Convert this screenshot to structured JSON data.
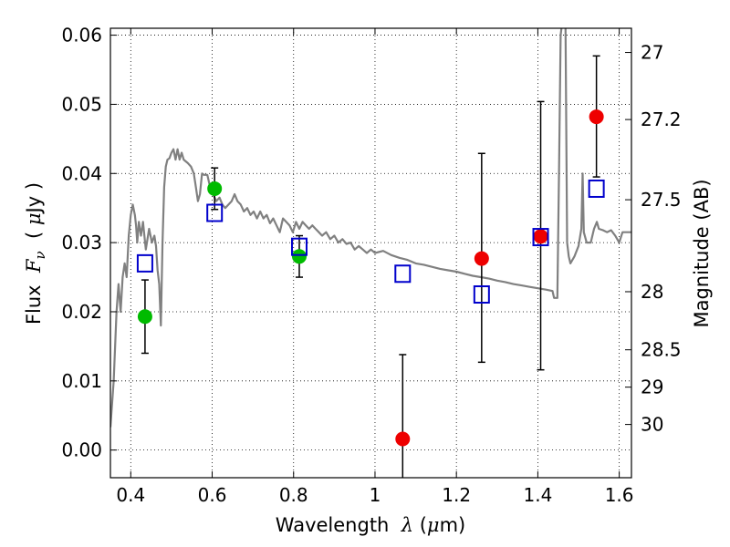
{
  "chart_data": {
    "type": "scatter",
    "xlabel_parts": [
      "Wavelength  ",
      "λ",
      " (",
      "μ",
      "m)"
    ],
    "ylabel_parts": [
      "Flux  ",
      "F",
      "ν",
      "  ( ",
      "μ",
      "Jy )"
    ],
    "y2label": "Magnitude (AB)",
    "xlim": [
      0.35,
      1.63
    ],
    "ylim": [
      -0.004,
      0.061
    ],
    "x_ticks": [
      0.4,
      0.6,
      0.8,
      1.0,
      1.2,
      1.4,
      1.6
    ],
    "x_tick_labels": [
      "0.4",
      "0.6",
      "0.8",
      "1",
      "1.2",
      "1.4",
      "1.6"
    ],
    "y_ticks": [
      0.0,
      0.01,
      0.02,
      0.03,
      0.04,
      0.05,
      0.06
    ],
    "y_tick_labels": [
      "0.00",
      "0.01",
      "0.02",
      "0.03",
      "0.04",
      "0.05",
      "0.06"
    ],
    "y2_ticks": [
      {
        "label": "27",
        "flux": 0.0575
      },
      {
        "label": "27.2",
        "flux": 0.0478
      },
      {
        "label": "27.5",
        "flux": 0.0362
      },
      {
        "label": "28",
        "flux": 0.0229
      },
      {
        "label": "28.5",
        "flux": 0.0145
      },
      {
        "label": "29",
        "flux": 0.0091
      },
      {
        "label": "30",
        "flux": 0.0037
      }
    ],
    "grid": true,
    "grid_style": "dotted",
    "colors": {
      "model": "#808080",
      "bands_green": "#00bb00",
      "bands_red": "#ee0000",
      "model_box": "#0000cc",
      "errorbar": "#000000"
    },
    "series": [
      {
        "marker": "filled-circle",
        "color_key": "bands_green",
        "points": [
          {
            "x": 0.435,
            "y": 0.0193,
            "err_low": 0.0053,
            "err_high": 0.0053
          },
          {
            "x": 0.606,
            "y": 0.0378,
            "err_low": 0.003,
            "err_high": 0.003
          },
          {
            "x": 0.814,
            "y": 0.028,
            "err_low": 0.003,
            "err_high": 0.003
          }
        ]
      },
      {
        "marker": "filled-circle",
        "color_key": "bands_red",
        "points": [
          {
            "x": 1.068,
            "y": 0.0016,
            "err_low": 0.006,
            "err_high": 0.0122
          },
          {
            "x": 1.262,
            "y": 0.0277,
            "err_low": 0.015,
            "err_high": 0.0152
          },
          {
            "x": 1.407,
            "y": 0.0309,
            "err_low": 0.0193,
            "err_high": 0.0195
          },
          {
            "x": 1.544,
            "y": 0.0482,
            "err_low": 0.0087,
            "err_high": 0.0088
          }
        ]
      },
      {
        "marker": "open-square",
        "color_key": "model_box",
        "points": [
          {
            "x": 0.435,
            "y": 0.027
          },
          {
            "x": 0.606,
            "y": 0.0343
          },
          {
            "x": 0.814,
            "y": 0.0294
          },
          {
            "x": 1.068,
            "y": 0.0255
          },
          {
            "x": 1.262,
            "y": 0.0225
          },
          {
            "x": 1.407,
            "y": 0.0308
          },
          {
            "x": 1.544,
            "y": 0.0378
          }
        ]
      },
      {
        "marker": "line",
        "color_key": "model",
        "points": [
          [
            0.35,
            0.0033
          ],
          [
            0.358,
            0.01
          ],
          [
            0.365,
            0.02
          ],
          [
            0.37,
            0.024
          ],
          [
            0.375,
            0.02
          ],
          [
            0.38,
            0.025
          ],
          [
            0.385,
            0.027
          ],
          [
            0.39,
            0.025
          ],
          [
            0.395,
            0.031
          ],
          [
            0.4,
            0.034
          ],
          [
            0.405,
            0.0355
          ],
          [
            0.41,
            0.034
          ],
          [
            0.413,
            0.0325
          ],
          [
            0.416,
            0.03
          ],
          [
            0.42,
            0.033
          ],
          [
            0.425,
            0.031
          ],
          [
            0.43,
            0.033
          ],
          [
            0.437,
            0.029
          ],
          [
            0.445,
            0.032
          ],
          [
            0.452,
            0.03
          ],
          [
            0.458,
            0.031
          ],
          [
            0.462,
            0.0295
          ],
          [
            0.466,
            0.026
          ],
          [
            0.47,
            0.024
          ],
          [
            0.474,
            0.018
          ],
          [
            0.478,
            0.03
          ],
          [
            0.482,
            0.038
          ],
          [
            0.486,
            0.041
          ],
          [
            0.49,
            0.042
          ],
          [
            0.495,
            0.0422
          ],
          [
            0.5,
            0.043
          ],
          [
            0.505,
            0.0435
          ],
          [
            0.51,
            0.042
          ],
          [
            0.515,
            0.0435
          ],
          [
            0.52,
            0.042
          ],
          [
            0.525,
            0.043
          ],
          [
            0.53,
            0.042
          ],
          [
            0.54,
            0.0415
          ],
          [
            0.548,
            0.041
          ],
          [
            0.555,
            0.04
          ],
          [
            0.56,
            0.038
          ],
          [
            0.565,
            0.036
          ],
          [
            0.57,
            0.037
          ],
          [
            0.575,
            0.04
          ],
          [
            0.58,
            0.0398
          ],
          [
            0.588,
            0.0398
          ],
          [
            0.595,
            0.038
          ],
          [
            0.602,
            0.037
          ],
          [
            0.61,
            0.036
          ],
          [
            0.618,
            0.0365
          ],
          [
            0.625,
            0.0355
          ],
          [
            0.632,
            0.035
          ],
          [
            0.64,
            0.0355
          ],
          [
            0.648,
            0.036
          ],
          [
            0.655,
            0.037
          ],
          [
            0.662,
            0.036
          ],
          [
            0.67,
            0.0355
          ],
          [
            0.678,
            0.0345
          ],
          [
            0.686,
            0.035
          ],
          [
            0.694,
            0.034
          ],
          [
            0.702,
            0.0345
          ],
          [
            0.71,
            0.0335
          ],
          [
            0.718,
            0.0345
          ],
          [
            0.726,
            0.0335
          ],
          [
            0.734,
            0.034
          ],
          [
            0.742,
            0.0328
          ],
          [
            0.75,
            0.0335
          ],
          [
            0.758,
            0.0325
          ],
          [
            0.766,
            0.0315
          ],
          [
            0.774,
            0.0335
          ],
          [
            0.782,
            0.033
          ],
          [
            0.79,
            0.0325
          ],
          [
            0.798,
            0.0315
          ],
          [
            0.806,
            0.033
          ],
          [
            0.814,
            0.032
          ],
          [
            0.822,
            0.033
          ],
          [
            0.83,
            0.0325
          ],
          [
            0.838,
            0.032
          ],
          [
            0.846,
            0.0325
          ],
          [
            0.854,
            0.032
          ],
          [
            0.862,
            0.0315
          ],
          [
            0.87,
            0.031
          ],
          [
            0.88,
            0.0315
          ],
          [
            0.89,
            0.0305
          ],
          [
            0.9,
            0.031
          ],
          [
            0.91,
            0.03
          ],
          [
            0.92,
            0.0305
          ],
          [
            0.93,
            0.0298
          ],
          [
            0.94,
            0.03
          ],
          [
            0.95,
            0.029
          ],
          [
            0.96,
            0.0295
          ],
          [
            0.97,
            0.029
          ],
          [
            0.98,
            0.0285
          ],
          [
            0.99,
            0.029
          ],
          [
            1.0,
            0.0285
          ],
          [
            1.02,
            0.0288
          ],
          [
            1.04,
            0.0282
          ],
          [
            1.06,
            0.0278
          ],
          [
            1.08,
            0.0275
          ],
          [
            1.1,
            0.027
          ],
          [
            1.12,
            0.0268
          ],
          [
            1.14,
            0.0265
          ],
          [
            1.16,
            0.0262
          ],
          [
            1.18,
            0.026
          ],
          [
            1.2,
            0.0258
          ],
          [
            1.22,
            0.0255
          ],
          [
            1.24,
            0.0252
          ],
          [
            1.26,
            0.025
          ],
          [
            1.28,
            0.0248
          ],
          [
            1.3,
            0.0245
          ],
          [
            1.32,
            0.0243
          ],
          [
            1.34,
            0.024
          ],
          [
            1.36,
            0.0238
          ],
          [
            1.38,
            0.0236
          ],
          [
            1.4,
            0.0234
          ],
          [
            1.42,
            0.0232
          ],
          [
            1.436,
            0.023
          ],
          [
            1.44,
            0.022
          ],
          [
            1.448,
            0.022
          ],
          [
            1.452,
            0.04
          ],
          [
            1.456,
            0.06
          ],
          [
            1.46,
            0.062
          ],
          [
            1.464,
            0.065
          ],
          [
            1.468,
            0.062
          ],
          [
            1.472,
            0.03
          ],
          [
            1.476,
            0.028
          ],
          [
            1.48,
            0.027
          ],
          [
            1.49,
            0.028
          ],
          [
            1.5,
            0.0295
          ],
          [
            1.507,
            0.032
          ],
          [
            1.51,
            0.04
          ],
          [
            1.513,
            0.0315
          ],
          [
            1.52,
            0.03
          ],
          [
            1.53,
            0.03
          ],
          [
            1.538,
            0.032
          ],
          [
            1.545,
            0.033
          ],
          [
            1.55,
            0.032
          ],
          [
            1.56,
            0.0318
          ],
          [
            1.57,
            0.0315
          ],
          [
            1.58,
            0.0318
          ],
          [
            1.59,
            0.031
          ],
          [
            1.6,
            0.03
          ],
          [
            1.608,
            0.0315
          ],
          [
            1.615,
            0.0315
          ],
          [
            1.63,
            0.0315
          ]
        ]
      }
    ]
  }
}
